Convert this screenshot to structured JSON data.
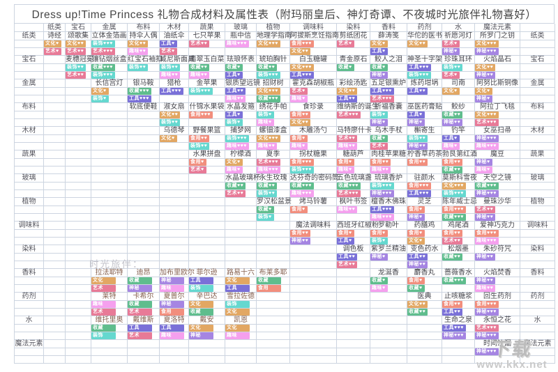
{
  "title": "Dress up!Time Princess 礼物合成材料及属性表（附玛丽皇后、神灯奇谭、不夜城时光旅伴礼物喜好）",
  "columns": [
    "纸类",
    "宝石",
    "金属",
    "布料",
    "木材",
    "蔬果",
    "玻璃",
    "植物",
    "调味料",
    "染料",
    "香料",
    "药剂",
    "水",
    "魔法元素"
  ],
  "tag_colors": {
    "文化": "#e2a763",
    "艺术": "#e87a97",
    "收藏": "#5fbd8d",
    "装饰": "#65d8cf",
    "工具": "#7a70d8",
    "食用": "#f28e7d",
    "趣味": "#f5a0ee",
    "神秘": "#a585e2"
  },
  "companions_label": "时光旅伴：",
  "watermark": {
    "logo": "下载",
    "url": "www.kkx.net"
  },
  "rows": [
    {
      "label": "纸类",
      "cells": [
        {
          "c": 1,
          "n": "诗经",
          "t": [
            "文化♥",
            "艺术♥"
          ]
        },
        {
          "c": 2,
          "n": "颂歌集",
          "t": [
            "文化♥♥",
            "艺术♥♥"
          ]
        },
        {
          "c": 3,
          "n": "立体金箔画",
          "t": [
            "装饰♥♥♥",
            "艺术♥♥♥"
          ]
        },
        {
          "c": 4,
          "n": "持伞人偶",
          "t": [
            "文化♥♥",
            "趣味♥♥"
          ]
        },
        {
          "c": 5,
          "n": "油纸伞",
          "t": [
            "工具♥",
            "艺术♥"
          ]
        },
        {
          "c": 6,
          "n": "七只苹果",
          "t": [
            "艺术♥♥"
          ]
        },
        {
          "c": 7,
          "n": "瓶中信",
          "t": [
            "趣味♥♥♥"
          ]
        },
        {
          "c": 8,
          "n": "地理学指南",
          "t": [
            "文化♥♥♥"
          ]
        },
        {
          "c": 9,
          "n": "阿拔斯烹饪指南",
          "t": [
            "食用♥♥♥",
            "文化♥♥"
          ]
        },
        {
          "c": 10,
          "n": "剪纸团花",
          "t": [
            "艺术♥"
          ]
        },
        {
          "c": 11,
          "n": "薛涛笺",
          "t": [
            "文化♥",
            "工具♥"
          ]
        },
        {
          "c": 12,
          "n": "华佗的医书",
          "t": [
            "文化♥♥"
          ]
        },
        {
          "c": 13,
          "n": "祈愿河灯",
          "t": [
            "艺术♥",
            "神秘♥"
          ]
        },
        {
          "c": 14,
          "n": "所罗门之钥",
          "t": [
            "文化♥♥♥",
            "神秘♥♥♥"
          ]
        }
      ]
    },
    {
      "label": "宝石",
      "cells": [
        {
          "c": 2,
          "n": "麦穗冠冕",
          "t": [
            "装饰♥♥",
            "艺术♥♥"
          ]
        },
        {
          "c": 3,
          "n": "镶钻烟丝盒",
          "t": [
            "收藏♥♥♥",
            "装饰♥♥♥"
          ]
        },
        {
          "c": 4,
          "n": "红宝石袖扣",
          "t": [
            "装饰♥♥"
          ]
        },
        {
          "c": 5,
          "n": "威尼斯面具",
          "t": [
            "装饰♥♥",
            "趣味♥♥"
          ]
        },
        {
          "c": 6,
          "n": "翡翠玉白菜",
          "t": [
            "收藏♥♥",
            "趣味♥♥"
          ]
        },
        {
          "c": 7,
          "n": "珐琅怀表",
          "t": [
            "收藏♥",
            "工具♥"
          ]
        },
        {
          "c": 8,
          "n": "琥珀胸针",
          "t": [
            "收藏♥♥",
            "装饰♥♥♥"
          ]
        },
        {
          "c": 9,
          "n": "白玉糖罐",
          "t": [
            "文化♥♥♥",
            "工具♥♥♥"
          ]
        },
        {
          "c": 10,
          "n": "青金原石",
          "t": [
            "收藏♥"
          ]
        },
        {
          "c": 11,
          "n": "鲛人之泪",
          "t": [
            "收藏♥",
            "神秘♥"
          ]
        },
        {
          "c": 12,
          "n": "神圣十字架",
          "t": [
            "工具♥♥♥",
            "装饰♥♥♥"
          ]
        },
        {
          "c": 13,
          "n": "珍珠耳环",
          "t": [
            "装饰♥♥",
            "艺术♥"
          ]
        },
        {
          "c": 14,
          "n": "火焰晶石",
          "t": [
            "文化♥♥",
            "神秘♥♥"
          ]
        }
      ]
    },
    {
      "label": "金属",
      "cells": [
        {
          "c": 3,
          "n": "长信宫灯",
          "t": [
            "文化♥",
            "装饰♥"
          ]
        },
        {
          "c": 4,
          "n": "银马鞍",
          "t": [
            "收藏♥♥♥",
            "工具♥♥♥"
          ]
        },
        {
          "c": 5,
          "n": "猎枪",
          "t": [
            "工具♥♥♥"
          ]
        },
        {
          "c": 6,
          "n": "金苹果",
          "t": [
            "装饰♥♥♥"
          ]
        },
        {
          "c": 7,
          "n": "银质望远镜",
          "t": [
            "工具♥♥",
            "趣味♥♥"
          ]
        },
        {
          "c": 8,
          "n": "招财树",
          "t": [
            "文化♥♥♥",
            "收藏♥♥♥"
          ]
        },
        {
          "c": 9,
          "n": "霍克森胡椒瓶",
          "t": [
            "艺术♥",
            "趣味♥"
          ]
        },
        {
          "c": 10,
          "n": "彩绘汤匙",
          "t": [
            "文化♥♥",
            "工具♥♥"
          ]
        },
        {
          "c": 11,
          "n": "五足银熏炉",
          "t": [
            "工具♥♥♥",
            "艺术♥♥♥"
          ]
        },
        {
          "c": 12,
          "n": "炼药坩埚",
          "t": [
            "工具♥♥"
          ]
        },
        {
          "c": 13,
          "n": "司南",
          "t": [
            "文化♥"
          ]
        },
        {
          "c": 14,
          "n": "阿努比斯铜像",
          "t": [
            "文化♥",
            "神秘♥"
          ]
        }
      ]
    },
    {
      "label": "布料",
      "cells": [
        {
          "c": 4,
          "n": "软底便鞋",
          "t": []
        },
        {
          "c": 5,
          "n": "淑女扇",
          "t": [
            "文化♥♥",
            "装饰♥♥"
          ]
        },
        {
          "c": 6,
          "n": "什锦水果袋",
          "t": [
            "食用♥♥♥"
          ]
        },
        {
          "c": 7,
          "n": "水晶发箍",
          "t": [
            "工具♥",
            "装饰♥"
          ]
        },
        {
          "c": 8,
          "n": "绣花手帕",
          "t": [
            "装饰♥",
            "趣味♥"
          ]
        },
        {
          "c": 9,
          "n": "食珍录",
          "t": [
            "食用♥♥",
            "文化♥♥"
          ]
        },
        {
          "c": 10,
          "n": "维纳斯的诞生",
          "t": [
            "艺术♥♥♥"
          ]
        },
        {
          "c": 11,
          "n": "祈福香囊",
          "t": [
            "装饰♥",
            "神秘♥"
          ]
        },
        {
          "c": 12,
          "n": "巫医药膏贴",
          "t": [
            "工具♥",
            "神秘♥"
          ]
        },
        {
          "c": 13,
          "n": "鲛纱",
          "t": [
            "收藏♥♥",
            "神秘♥♥"
          ]
        },
        {
          "c": 14,
          "n": "阿拉丁飞毯",
          "t": [
            "文化♥♥♥",
            "艺术♥♥♥"
          ]
        }
      ]
    },
    {
      "label": "木材",
      "cells": [
        {
          "c": 5,
          "n": "乌德琴",
          "t": [
            "文化♥"
          ]
        },
        {
          "c": 6,
          "n": "野餐果篮",
          "t": [
            "食用♥♥",
            "装饰♥♥"
          ]
        },
        {
          "c": 7,
          "n": "捕梦网",
          "t": [
            "装饰♥♥♥",
            "趣味♥♥♥"
          ]
        },
        {
          "c": 8,
          "n": "螺钿漆盒",
          "t": [
            "文化♥♥♥",
            "趣味♥♥"
          ]
        },
        {
          "c": 9,
          "n": "木雕汤勺",
          "t": [
            "食用♥",
            "趣味♥"
          ]
        },
        {
          "c": 10,
          "n": "马特廖什卡",
          "t": [
            "艺术♥♥",
            "趣味♥♥"
          ]
        },
        {
          "c": 11,
          "n": "乌木手杖",
          "t": [
            "收藏♥",
            "艺术♥"
          ]
        },
        {
          "c": 12,
          "n": "槲寄生",
          "t": [
            "装饰♥♥",
            "神秘♥♥"
          ]
        },
        {
          "c": 13,
          "n": "钓竿",
          "t": [
            "工具♥",
            "趣味♥"
          ]
        },
        {
          "c": 14,
          "n": "女巫扫帚",
          "t": [
            "神秘♥♥♥",
            "趣味♥♥♥"
          ]
        }
      ]
    },
    {
      "label": "蔬果",
      "cells": [
        {
          "c": 6,
          "n": "水果拼盘",
          "t": [
            "食用♥",
            "艺术♥"
          ]
        },
        {
          "c": 7,
          "n": "柠檬酒",
          "t": [
            "文化♥",
            "趣味♥"
          ]
        },
        {
          "c": 8,
          "n": "夏季",
          "t": [
            "艺术♥♥♥",
            "趣味♥♥♥"
          ]
        },
        {
          "c": 9,
          "n": "拐杖糖果",
          "t": [
            "食用♥♥♥",
            "装饰♥♥♥"
          ]
        },
        {
          "c": 10,
          "n": "糖葫芦",
          "t": [
            "食用♥",
            "趣味♥"
          ]
        },
        {
          "c": 11,
          "n": "肉桂苹果糖",
          "t": [
            "食用♥♥",
            "趣味♥♥"
          ]
        },
        {
          "c": 12,
          "n": "柠香草药茶",
          "t": [
            "食用♥♥"
          ]
        },
        {
          "c": 13,
          "n": "勃艮第红酒",
          "t": [
            "食用♥♥",
            "收藏♥♥"
          ]
        },
        {
          "c": 14,
          "n": "魔豆",
          "t": [
            "神秘♥",
            "趣味♥"
          ]
        }
      ]
    },
    {
      "label": "玻璃",
      "cells": [
        {
          "c": 7,
          "n": "水晶玻璃杯",
          "t": [
            "收藏♥♥",
            "艺术♥♥"
          ]
        },
        {
          "c": 8,
          "n": "永生玫瑰",
          "t": [
            "收藏♥♥",
            "装饰♥♥"
          ]
        },
        {
          "c": 9,
          "n": "达芬奇的密码筒",
          "t": [
            "收藏♥♥♥",
            "趣味♥♥♥"
          ]
        },
        {
          "c": 10,
          "n": "五色琉璃盏",
          "t": [
            "收藏♥♥♥",
            "艺术♥♥♥"
          ]
        },
        {
          "c": 11,
          "n": "琉璃香炉",
          "t": [
            "装饰♥♥♥",
            "神秘♥♥♥"
          ]
        },
        {
          "c": 12,
          "n": "驻颜水",
          "t": [
            "食用♥♥♥",
            "工具♥♥♥"
          ]
        },
        {
          "c": 13,
          "n": "莫斯科雪夜",
          "t": [
            "文化♥♥♥",
            "装饰♥♥♥"
          ]
        },
        {
          "c": 14,
          "n": "天空之镜",
          "t": [
            "收藏♥♥♥",
            "神秘♥♥♥"
          ]
        }
      ]
    },
    {
      "label": "植物",
      "cells": [
        {
          "c": 8,
          "n": "罗汉松盆景",
          "t": [
            "收藏♥",
            "装饰♥"
          ]
        },
        {
          "c": 9,
          "n": "烤马铃薯",
          "t": [
            "食用♥"
          ]
        },
        {
          "c": 10,
          "n": "枫叶书签",
          "t": [
            "趣味♥♥"
          ]
        },
        {
          "c": 11,
          "n": "檀香木佛珠",
          "t": [
            "工具♥♥♥",
            "趣味♥♥♥"
          ]
        },
        {
          "c": 12,
          "n": "灵芝",
          "t": [
            "食用♥",
            "神秘♥"
          ]
        },
        {
          "c": 13,
          "n": "陈年威士忌",
          "t": [
            "食用♥♥♥",
            "收藏♥♥♥"
          ]
        },
        {
          "c": 14,
          "n": "曼珠沙华",
          "t": [
            "艺术♥♥",
            "神秘♥♥"
          ]
        }
      ]
    },
    {
      "label": "调味料",
      "cells": [
        {
          "c": 9,
          "n": "魔法调味料",
          "t": [
            "食用♥♥",
            "神秘♥♥"
          ]
        },
        {
          "c": 10,
          "n": "西班牙红椒粉",
          "t": [
            "食用♥",
            "工具♥"
          ]
        },
        {
          "c": 11,
          "n": "罗勒叶",
          "t": [
            "食用♥",
            "装饰♥"
          ]
        },
        {
          "c": 12,
          "n": "药膳鸡",
          "t": [
            "食用♥",
            "文化♥"
          ]
        },
        {
          "c": 13,
          "n": "鸡尾酒",
          "t": [
            "食用♥♥",
            "艺术♥♥"
          ]
        },
        {
          "c": 14,
          "n": "爱神巧克力",
          "t": [
            "食用♥♥♥",
            "趣味♥♥♥"
          ]
        }
      ]
    },
    {
      "label": "染料",
      "cells": [
        {
          "c": 10,
          "n": "调色板",
          "t": [
            "工具♥♥",
            "艺术♥♥"
          ]
        },
        {
          "c": 11,
          "n": "紫罗兰精油",
          "t": [
            "神秘♥"
          ]
        },
        {
          "c": 12,
          "n": "变色药水",
          "t": [
            "工具♥♥",
            "神秘♥♥"
          ]
        },
        {
          "c": 13,
          "n": "松烟墨",
          "t": [
            "收藏♥♥"
          ]
        },
        {
          "c": 14,
          "n": "朱砂符咒",
          "t": [
            "神秘♥♥"
          ]
        }
      ]
    },
    {
      "label": "香料",
      "cells": [
        {
          "c": 3,
          "n": "拉法耶特",
          "comp": true,
          "t": [
            "文化",
            "艺术"
          ]
        },
        {
          "c": 4,
          "n": "迪昂",
          "comp": true,
          "t": [
            "收藏",
            "神秘"
          ]
        },
        {
          "c": 5,
          "n": "加布里欧尔",
          "comp": true,
          "t": [
            "神秘",
            "趣味"
          ]
        },
        {
          "c": 6,
          "n": "菲尔逊",
          "comp": true,
          "t": [
            "工具",
            "装饰"
          ]
        },
        {
          "c": 7,
          "n": "路易十六",
          "comp": true,
          "t": [
            "文化",
            "工具"
          ]
        },
        {
          "c": 8,
          "n": "布莱多耶",
          "comp": true,
          "t": [
            "收藏",
            "食用"
          ]
        },
        {
          "c": 11,
          "n": "龙涎香",
          "t": [
            "收藏♥",
            "趣味♥"
          ]
        },
        {
          "c": 12,
          "n": "麝香丸",
          "t": [
            "食用♥",
            "收藏♥"
          ]
        },
        {
          "c": 13,
          "n": "蔷薇香水",
          "t": [
            "收藏♥♥♥"
          ]
        },
        {
          "c": 14,
          "n": "火焰焚香",
          "t": [
            "神秘♥♥",
            "趣味♥♥"
          ]
        }
      ]
    },
    {
      "label": "药剂",
      "cells": [
        {
          "c": 3,
          "n": "莱特",
          "comp": true,
          "t": [
            "趣味",
            "艺术"
          ]
        },
        {
          "c": 4,
          "n": "卡希尔",
          "comp": true,
          "t": [
            "收藏",
            "艺术"
          ]
        },
        {
          "c": 5,
          "n": "夏普尔",
          "comp": true,
          "t": [
            "神秘",
            "食用"
          ]
        },
        {
          "c": 6,
          "n": "辛巴达",
          "comp": true,
          "t": [
            "文化",
            "收藏"
          ]
        },
        {
          "c": 7,
          "n": "雪拉佐德",
          "comp": true,
          "t": [
            "装饰",
            "文化"
          ]
        },
        {
          "c": 12,
          "n": "医典",
          "t": [
            "文化♥♥",
            "收藏♥♥"
          ]
        },
        {
          "c": 13,
          "n": "止咳糖浆",
          "t": [
            "食用♥♥",
            "工具♥♥"
          ]
        },
        {
          "c": 14,
          "n": "回生药剂",
          "t": [
            "食用♥♥♥",
            "神秘♥♥♥"
          ]
        }
      ]
    },
    {
      "label": "水",
      "cells": [
        {
          "c": 3,
          "n": "维托里奥",
          "comp": true,
          "t": [
            "收藏",
            "装饰"
          ]
        },
        {
          "c": 4,
          "n": "戴维斯",
          "comp": true,
          "t": [
            "工具",
            "艺术"
          ]
        },
        {
          "c": 5,
          "n": "夏洛特",
          "comp": true,
          "t": [
            "工具",
            "趣味"
          ]
        },
        {
          "c": 6,
          "n": "戴安",
          "comp": true,
          "t": [
            "文化",
            "神秘"
          ]
        },
        {
          "c": 7,
          "n": "凯恩",
          "comp": true,
          "t": [
            "文化",
            "趣味"
          ]
        },
        {
          "c": 13,
          "n": "生命之泉",
          "t": [
            "工具♥♥♥",
            "神秘♥♥♥"
          ]
        },
        {
          "c": 14,
          "n": "永恒之花",
          "t": [
            "艺术♥♥♥",
            "神秘♥♥♥"
          ]
        }
      ]
    },
    {
      "label": "魔法元素",
      "cells": [
        {
          "c": 14,
          "n": "时间沙漏",
          "t": [
            "神秘♥♥♥"
          ]
        }
      ]
    }
  ]
}
